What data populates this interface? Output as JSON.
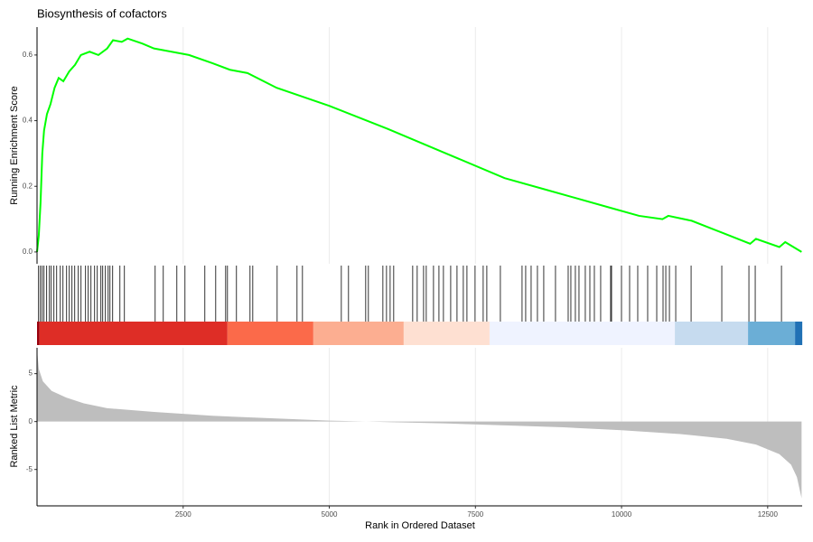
{
  "chart_data": [
    {
      "type": "line",
      "title": "Biosynthesis of cofactors",
      "ylabel": "Running Enrichment Score",
      "color": "#00ff00",
      "x": [
        0,
        30,
        60,
        90,
        120,
        170,
        230,
        300,
        370,
        450,
        550,
        650,
        750,
        900,
        1050,
        1200,
        1300,
        1450,
        1550,
        1800,
        2000,
        2300,
        2600,
        3000,
        3300,
        3600,
        4100,
        5000,
        6000,
        7000,
        8000,
        8700,
        9200,
        9800,
        10300,
        10700,
        10800,
        11200,
        11700,
        12200,
        12300,
        12700,
        12800,
        13080
      ],
      "values": [
        0,
        0.05,
        0.15,
        0.3,
        0.37,
        0.42,
        0.45,
        0.5,
        0.53,
        0.52,
        0.55,
        0.57,
        0.6,
        0.61,
        0.6,
        0.62,
        0.645,
        0.64,
        0.65,
        0.635,
        0.62,
        0.61,
        0.6,
        0.575,
        0.555,
        0.545,
        0.5,
        0.445,
        0.375,
        0.3,
        0.225,
        0.19,
        0.165,
        0.135,
        0.11,
        0.1,
        0.11,
        0.095,
        0.06,
        0.025,
        0.04,
        0.015,
        0.03,
        0
      ],
      "ylim": [
        -0.036,
        0.685
      ],
      "yticks": [
        {
          "value": 0,
          "label": "0.0"
        },
        0.2,
        0.4,
        0.6
      ]
    },
    {
      "type": "rug",
      "x": [
        26,
        57,
        88,
        119,
        165,
        212,
        243,
        289,
        336,
        398,
        444,
        506,
        552,
        598,
        645,
        706,
        753,
        830,
        876,
        923,
        985,
        1031,
        1093,
        1124,
        1170,
        1217,
        1248,
        1294,
        1418,
        1495,
        2021,
        2160,
        2392,
        2531,
        2871,
        3057,
        3227,
        3258,
        3412,
        3644,
        3691,
        4108,
        4448,
        4541,
        5206,
        5329,
        5623,
        5669,
        5917,
        5979,
        6041,
        6102,
        6427,
        6504,
        6613,
        6659,
        6783,
        6876,
        6953,
        7077,
        7185,
        7293,
        7355,
        7494,
        7633,
        7695,
        7927,
        8298,
        8360,
        8453,
        8561,
        8669,
        8870,
        9087,
        9133,
        9210,
        9272,
        9380,
        9458,
        9535,
        9643,
        9813,
        9829,
        9999,
        10138,
        10277,
        10447,
        10602,
        10710,
        10757,
        10819,
        10927,
        11190,
        11715,
        12179,
        12287,
        12736
      ],
      "bands": [
        {
          "start": 0,
          "end": 42,
          "color": "#99000d"
        },
        {
          "start": 42,
          "end": 3258,
          "color": "#de2d26"
        },
        {
          "start": 3258,
          "end": 4727,
          "color": "#fb6a4a"
        },
        {
          "start": 4727,
          "end": 6273,
          "color": "#fcae91"
        },
        {
          "start": 6273,
          "end": 7742,
          "color": "#fee0d2"
        },
        {
          "start": 7742,
          "end": 10912,
          "color": "#eff3ff"
        },
        {
          "start": 10912,
          "end": 12164,
          "color": "#c6dbef"
        },
        {
          "start": 12164,
          "end": 12968,
          "color": "#6baed6"
        },
        {
          "start": 12968,
          "end": 13092,
          "color": "#2171b5"
        }
      ]
    },
    {
      "type": "area",
      "xlabel": "Rank in Ordered Dataset",
      "ylabel": "Ranked List Metric",
      "color": "#bebebe",
      "x": [
        0,
        30,
        100,
        250,
        500,
        800,
        1200,
        2000,
        3000,
        4000,
        5000,
        6000,
        7000,
        8000,
        9000,
        10000,
        11000,
        11800,
        12300,
        12700,
        12900,
        13000,
        13080
      ],
      "values": [
        7.5,
        5.5,
        4.2,
        3.2,
        2.5,
        1.9,
        1.4,
        1.0,
        0.6,
        0.35,
        0.1,
        -0.05,
        -0.2,
        -0.4,
        -0.6,
        -0.9,
        -1.3,
        -1.8,
        -2.4,
        -3.4,
        -4.5,
        -5.8,
        -8.0
      ],
      "xlim": [
        0,
        13090
      ],
      "xticks": [
        2500,
        5000,
        7500,
        10000,
        12500
      ],
      "ylim": [
        -8.8,
        7.7
      ],
      "yticks": [
        5,
        0,
        -5
      ]
    }
  ]
}
